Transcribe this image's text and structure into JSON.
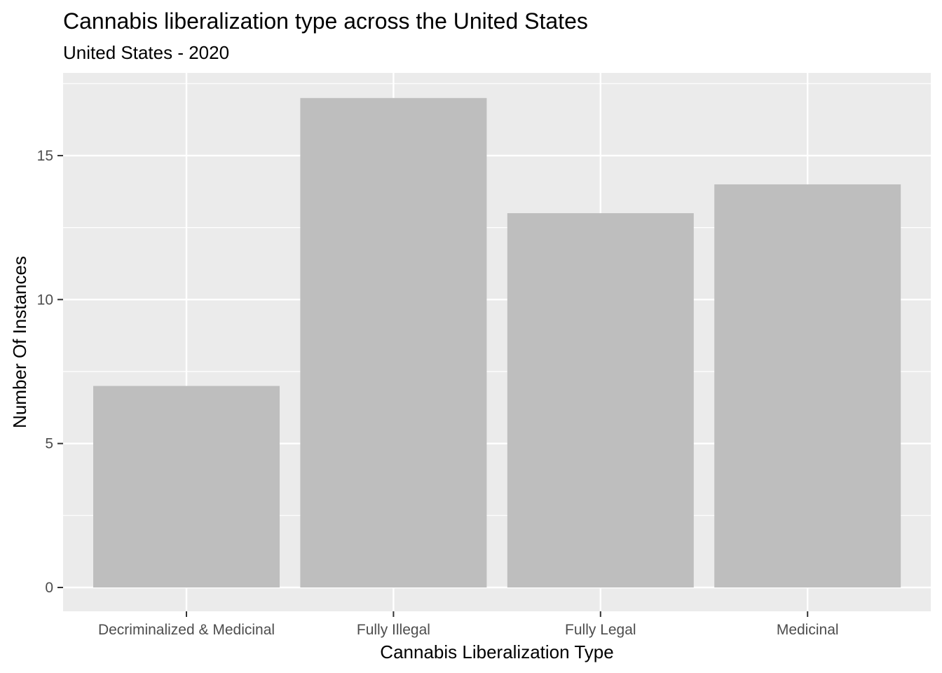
{
  "chart_data": {
    "type": "bar",
    "title": "Cannabis liberalization type across the United States",
    "subtitle": "United States - 2020",
    "xlabel": "Cannabis Liberalization Type",
    "ylabel": "Number Of Instances",
    "categories": [
      "Decriminalized & Medicinal",
      "Fully Illegal",
      "Fully Legal",
      "Medicinal"
    ],
    "values": [
      7,
      17,
      13,
      14
    ],
    "ylim": [
      0,
      17.85
    ],
    "yticks": [
      0,
      5,
      10,
      15
    ],
    "grid": true,
    "legend": "none",
    "colors": {
      "bar": "#bebebe",
      "panel": "#ebebeb",
      "grid": "#ffffff",
      "tick_label": "#4d4d4d",
      "tick_mark": "#333333"
    }
  }
}
